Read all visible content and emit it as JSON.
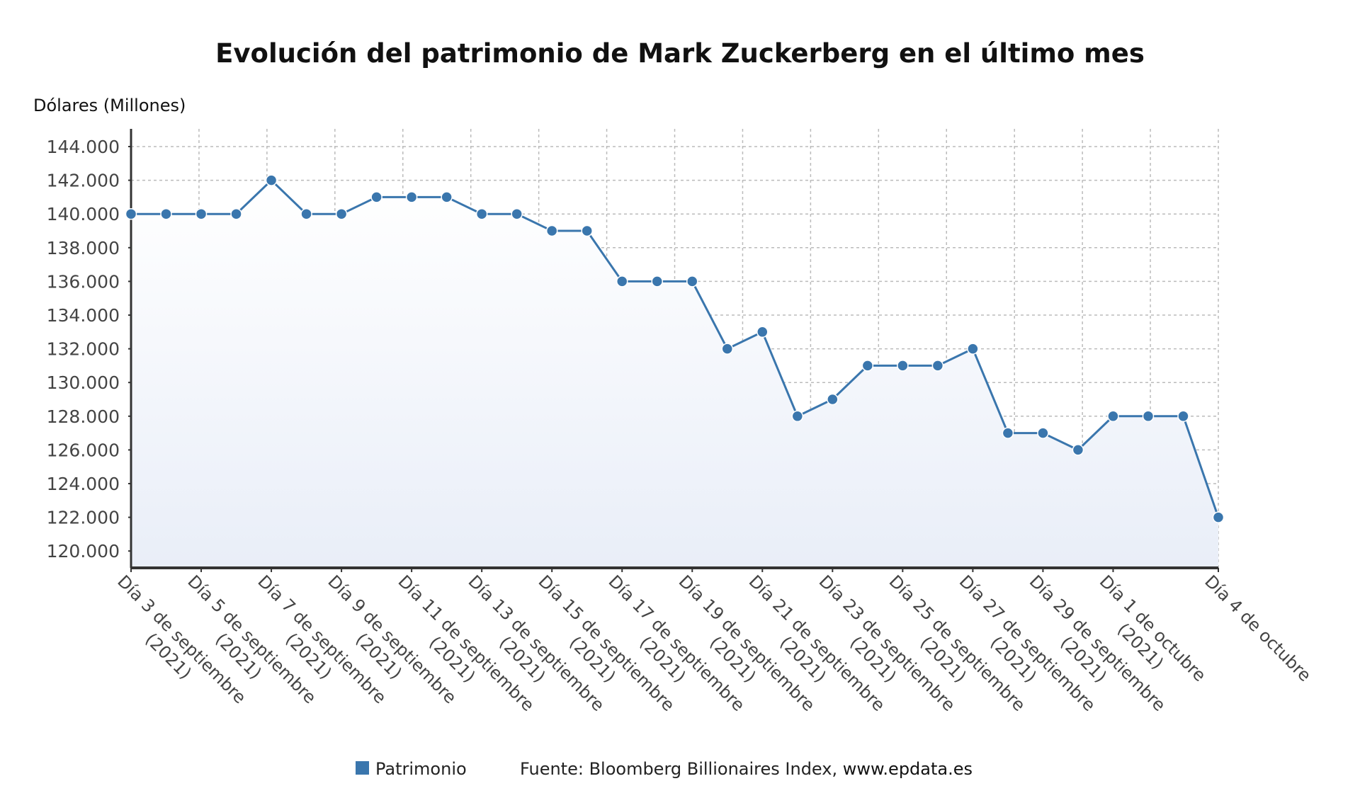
{
  "chart_data": {
    "type": "line",
    "title": "Evolución del patrimonio de Mark Zuckerberg en el último mes",
    "ylabel": "Dólares (Millones)",
    "xlabel": "",
    "ylim": [
      119000,
      145000
    ],
    "yticks": [
      120000,
      122000,
      124000,
      126000,
      128000,
      130000,
      132000,
      134000,
      136000,
      138000,
      140000,
      142000,
      144000
    ],
    "ytick_labels": [
      "120.000",
      "122.000",
      "124.000",
      "126.000",
      "128.000",
      "130.000",
      "132.000",
      "134.000",
      "136.000",
      "138.000",
      "140.000",
      "142.000",
      "144.000"
    ],
    "x": [
      "3 sep",
      "4 sep",
      "5 sep",
      "6 sep",
      "7 sep",
      "8 sep",
      "9 sep",
      "10 sep",
      "11 sep",
      "12 sep",
      "13 sep",
      "14 sep",
      "15 sep",
      "16 sep",
      "17 sep",
      "18 sep",
      "19 sep",
      "20 sep",
      "21 sep",
      "22 sep",
      "23 sep",
      "24 sep",
      "25 sep",
      "26 sep",
      "27 sep",
      "28 sep",
      "29 sep",
      "30 sep",
      "1 oct",
      "2 oct",
      "3 oct",
      "4 oct"
    ],
    "xtick_labels": [
      {
        "index": 0,
        "line1": "Día 3 de septiembre",
        "line2": "(2021)"
      },
      {
        "index": 2,
        "line1": "Día 5 de septiembre",
        "line2": "(2021)"
      },
      {
        "index": 4,
        "line1": "Día 7 de septiembre",
        "line2": "(2021)"
      },
      {
        "index": 6,
        "line1": "Día 9 de septiembre",
        "line2": "(2021)"
      },
      {
        "index": 8,
        "line1": "Día 11 de septiembre",
        "line2": "(2021)"
      },
      {
        "index": 10,
        "line1": "Día 13 de septiembre",
        "line2": "(2021)"
      },
      {
        "index": 12,
        "line1": "Día 15 de septiembre",
        "line2": "(2021)"
      },
      {
        "index": 14,
        "line1": "Día 17 de septiembre",
        "line2": "(2021)"
      },
      {
        "index": 16,
        "line1": "Día 19 de septiembre",
        "line2": "(2021)"
      },
      {
        "index": 18,
        "line1": "Día 21 de septiembre",
        "line2": "(2021)"
      },
      {
        "index": 20,
        "line1": "Día 23 de septiembre",
        "line2": "(2021)"
      },
      {
        "index": 22,
        "line1": "Día 25 de septiembre",
        "line2": "(2021)"
      },
      {
        "index": 24,
        "line1": "Día 27 de septiembre",
        "line2": "(2021)"
      },
      {
        "index": 26,
        "line1": "Día 29 de septiembre",
        "line2": "(2021)"
      },
      {
        "index": 28,
        "line1": "Día 1 de octubre",
        "line2": "(2021)"
      },
      {
        "index": 31,
        "line1": "Día 4 de octubre",
        "line2": ""
      }
    ],
    "series": [
      {
        "name": "Patrimonio",
        "color": "#3a76ad",
        "values": [
          140000,
          140000,
          140000,
          140000,
          142000,
          140000,
          140000,
          141000,
          141000,
          141000,
          140000,
          140000,
          139000,
          139000,
          136000,
          136000,
          136000,
          132000,
          133000,
          128000,
          129000,
          131000,
          131000,
          131000,
          132000,
          127000,
          127000,
          126000,
          128000,
          128000,
          128000,
          122000
        ]
      }
    ],
    "grid": true,
    "legend": "bottom-center",
    "source": "Fuente: Bloomberg Billionaires Index, ",
    "source_site": "www.epdata.es"
  }
}
